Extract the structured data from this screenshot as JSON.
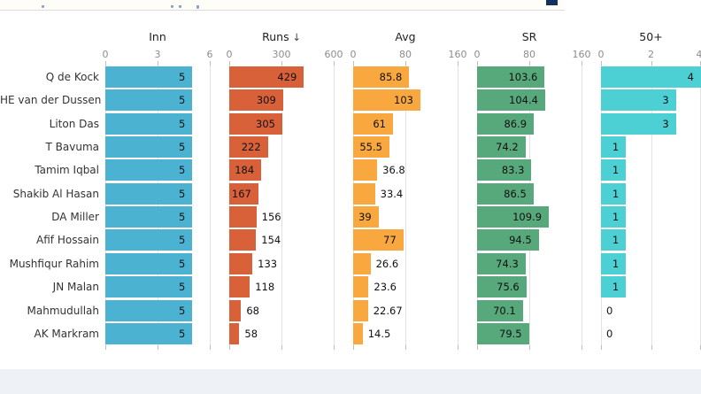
{
  "top_bar": {
    "description": "partially cropped page header strip",
    "fragment_icon": "navy-square"
  },
  "chart_data": {
    "type": "bar",
    "orientation": "horizontal",
    "layout": "small-multiples: one bar column per statistic, shared player rows, gridlines on, tick labels above",
    "sorted_by": "Runs descending",
    "columns": [
      {
        "key": "inn",
        "label": "Inn",
        "ticks": [
          "0",
          "3",
          "6"
        ],
        "max": 6,
        "color": "#4bb2d2"
      },
      {
        "key": "runs",
        "label": "Runs",
        "sort_arrow": "↓",
        "ticks": [
          "0",
          "300",
          "600"
        ],
        "max": 600,
        "color": "#d8613a"
      },
      {
        "key": "avg",
        "label": "Avg",
        "ticks": [
          "0",
          "80",
          "160"
        ],
        "max": 160,
        "color": "#f9a83f"
      },
      {
        "key": "sr",
        "label": "SR",
        "ticks": [
          "0",
          "80",
          "160"
        ],
        "max": 160,
        "color": "#57a87b"
      },
      {
        "key": "fifty",
        "label": "50+",
        "ticks": [
          "0",
          "2",
          "4"
        ],
        "max": 4,
        "color": "#4dd0d3"
      }
    ],
    "rows": [
      {
        "name": "Q de Kock",
        "inn": "5",
        "runs": "429",
        "avg": "85.8",
        "sr": "103.6",
        "fifty": "4"
      },
      {
        "name": "HE van der Dussen",
        "inn": "5",
        "runs": "309",
        "avg": "103",
        "sr": "104.4",
        "fifty": "3"
      },
      {
        "name": "Liton Das",
        "inn": "5",
        "runs": "305",
        "avg": "61",
        "sr": "86.9",
        "fifty": "3"
      },
      {
        "name": "T Bavuma",
        "inn": "5",
        "runs": "222",
        "avg": "55.5",
        "sr": "74.2",
        "fifty": "1"
      },
      {
        "name": "Tamim Iqbal",
        "inn": "5",
        "runs": "184",
        "avg": "36.8",
        "sr": "83.3",
        "fifty": "1"
      },
      {
        "name": "Shakib Al Hasan",
        "inn": "5",
        "runs": "167",
        "avg": "33.4",
        "sr": "86.5",
        "fifty": "1"
      },
      {
        "name": "DA Miller",
        "inn": "5",
        "runs": "156",
        "avg": "39",
        "sr": "109.9",
        "fifty": "1"
      },
      {
        "name": "Afif Hossain",
        "inn": "5",
        "runs": "154",
        "avg": "77",
        "sr": "94.5",
        "fifty": "1"
      },
      {
        "name": "Mushfiqur Rahim",
        "inn": "5",
        "runs": "133",
        "avg": "26.6",
        "sr": "74.3",
        "fifty": "1"
      },
      {
        "name": "JN Malan",
        "inn": "5",
        "runs": "118",
        "avg": "23.6",
        "sr": "75.6",
        "fifty": "1"
      },
      {
        "name": "Mahmudullah",
        "inn": "5",
        "runs": "68",
        "avg": "22.67",
        "sr": "70.1",
        "fifty": "0"
      },
      {
        "name": "AK Markram",
        "inn": "5",
        "runs": "58",
        "avg": "14.5",
        "sr": "79.5",
        "fifty": "0"
      }
    ]
  },
  "colors": {
    "page_bg": "#ffffff",
    "top_bar_bg": "#fffdf7",
    "top_bar_border": "#dcdcdc",
    "top_bar_square": "#15305f",
    "footer_bg": "#eef1f6",
    "gridline": "#e2e2e2",
    "tick_mark": "#bdbdbd",
    "tick_label_text": "#8c8c8c",
    "header_text": "#222222",
    "name_text": "#333333",
    "value_text": "#111111"
  }
}
